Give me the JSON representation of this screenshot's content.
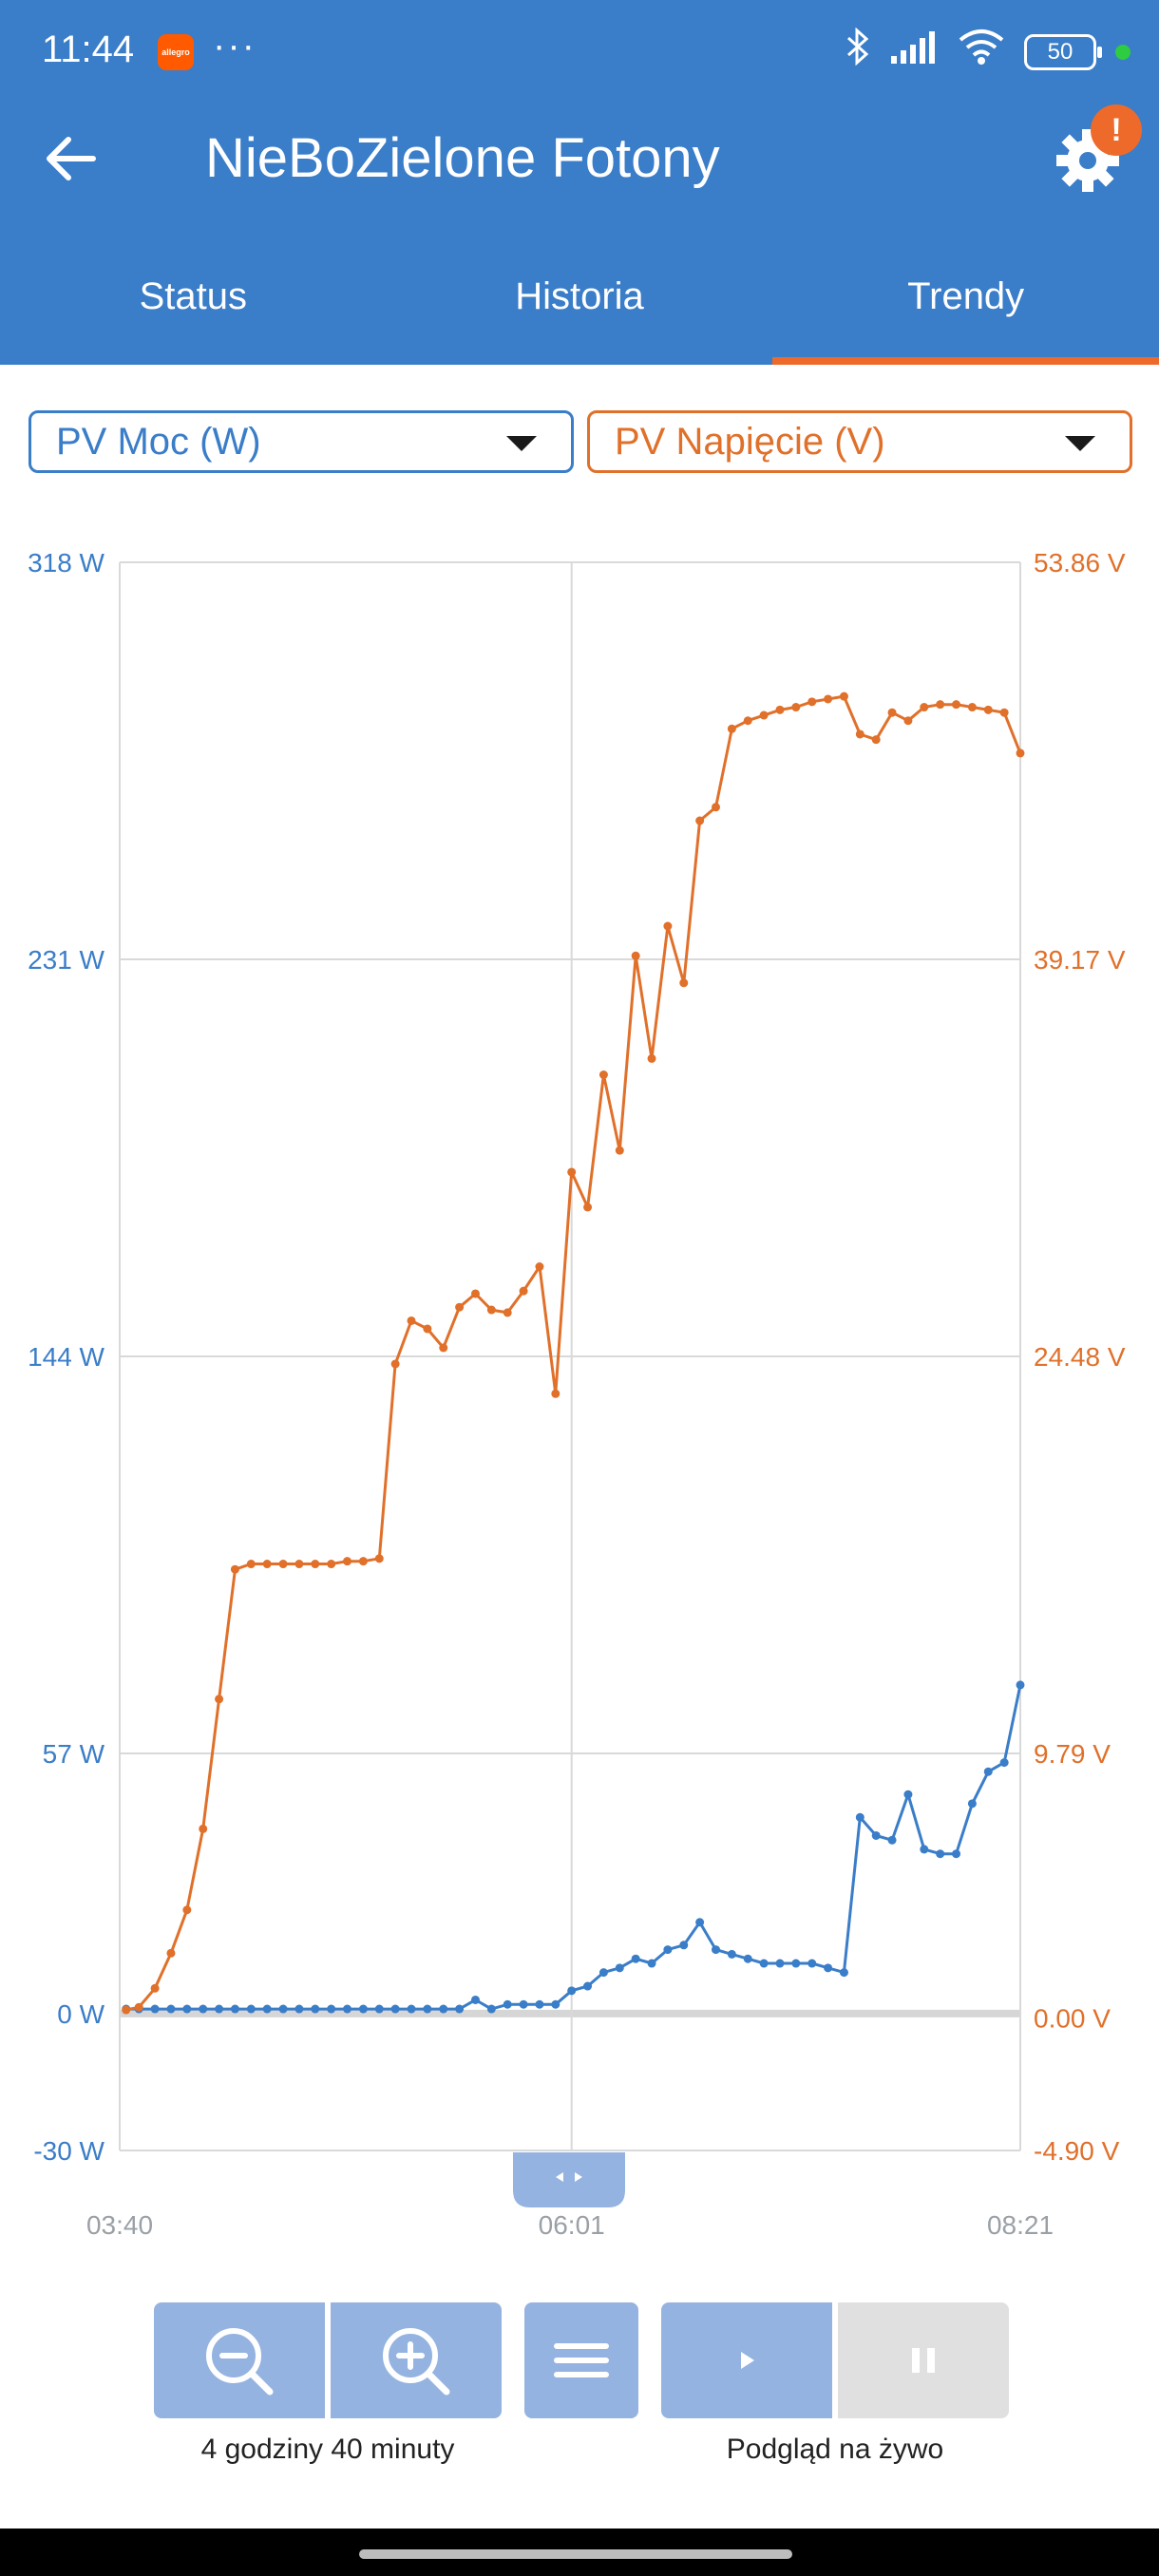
{
  "status_bar": {
    "time": "11:44",
    "notification_app": "allegro",
    "overflow_dots": "···",
    "battery": "50",
    "icons": [
      "bluetooth-icon",
      "signal-icon",
      "wifi-icon",
      "battery-icon"
    ]
  },
  "header": {
    "title": "NieBoZielone Fotony",
    "alert_badge": "!",
    "colors": {
      "bar": "#3a7dc8",
      "accent": "#ee6a2a"
    }
  },
  "tabs": [
    {
      "label": "Status",
      "active": false
    },
    {
      "label": "Historia",
      "active": false
    },
    {
      "label": "Trendy",
      "active": true
    }
  ],
  "selectors": {
    "left": {
      "value": "PV Moc (W)",
      "color": "#3a7dc8"
    },
    "right": {
      "value": "PV Napięcie (V)",
      "color": "#e0702a"
    }
  },
  "chart_data": {
    "type": "line",
    "x_ticks": [
      "03:40",
      "06:01",
      "08:21"
    ],
    "x_range_minutes": [
      220,
      501
    ],
    "y_left": {
      "ticks": [
        "318 W",
        "231 W",
        "144 W",
        "57 W",
        "0 W",
        "-30 W"
      ],
      "range": [
        -30,
        318
      ],
      "unit": "W"
    },
    "y_right": {
      "ticks": [
        "53.86 V",
        "39.17 V",
        "24.48 V",
        "9.79 V",
        "0.00 V",
        "-4.90 V"
      ],
      "range": [
        -4.9,
        53.86
      ],
      "unit": "V"
    },
    "grid": true,
    "series": [
      {
        "axis": "left",
        "unit": "W",
        "color": "#3a7dc8",
        "x": [
          222,
          226,
          231,
          236,
          241,
          246,
          251,
          256,
          261,
          266,
          271,
          276,
          281,
          286,
          291,
          296,
          301,
          306,
          311,
          316,
          321,
          326,
          331,
          336,
          341,
          346,
          351,
          356,
          361,
          366,
          371,
          376,
          381,
          386,
          391,
          396,
          401,
          406,
          411,
          416,
          421,
          426,
          431,
          436,
          441,
          446,
          451,
          456,
          461,
          466,
          471,
          476,
          481,
          486,
          491,
          496,
          501
        ],
        "values": [
          1,
          1,
          1,
          1,
          1,
          1,
          1,
          1,
          1,
          1,
          1,
          1,
          1,
          1,
          1,
          1,
          1,
          1,
          1,
          1,
          1,
          1,
          3,
          1,
          2,
          2,
          2,
          2,
          5,
          6,
          9,
          10,
          12,
          11,
          14,
          15,
          20,
          14,
          13,
          12,
          11,
          11,
          11,
          11,
          10,
          9,
          43,
          39,
          38,
          48,
          36,
          35,
          35,
          46,
          53,
          55,
          72
        ]
      },
      {
        "axis": "right",
        "unit": "V",
        "color": "#e0702a",
        "x": [
          222,
          226,
          231,
          236,
          241,
          246,
          251,
          256,
          261,
          266,
          271,
          276,
          281,
          286,
          291,
          296,
          301,
          306,
          311,
          316,
          321,
          326,
          331,
          336,
          341,
          346,
          351,
          356,
          361,
          366,
          371,
          376,
          381,
          386,
          391,
          396,
          401,
          406,
          411,
          416,
          421,
          426,
          431,
          436,
          441,
          446,
          451,
          456,
          461,
          466,
          471,
          476,
          481,
          486,
          491,
          496,
          501
        ],
        "values": [
          0.3,
          0.4,
          1.1,
          2.4,
          4.0,
          7.0,
          11.8,
          16.6,
          16.8,
          16.8,
          16.8,
          16.8,
          16.8,
          16.8,
          16.9,
          16.9,
          17.0,
          24.2,
          25.8,
          25.5,
          24.8,
          26.3,
          26.8,
          26.2,
          26.1,
          26.9,
          27.8,
          23.1,
          31.3,
          30.0,
          34.9,
          32.1,
          39.3,
          35.5,
          40.4,
          38.3,
          44.3,
          44.8,
          47.7,
          48.0,
          48.2,
          48.4,
          48.5,
          48.7,
          48.8,
          48.9,
          47.5,
          47.3,
          48.3,
          48.0,
          48.5,
          48.6,
          48.6,
          48.5,
          48.4,
          48.3,
          46.8
        ]
      }
    ]
  },
  "controls": {
    "zoom_label": "4 godziny 40 minuty",
    "live_label": "Podgląd na żywo",
    "colors": {
      "button": "#95b3e0",
      "disabled": "#e0e0e0"
    }
  }
}
